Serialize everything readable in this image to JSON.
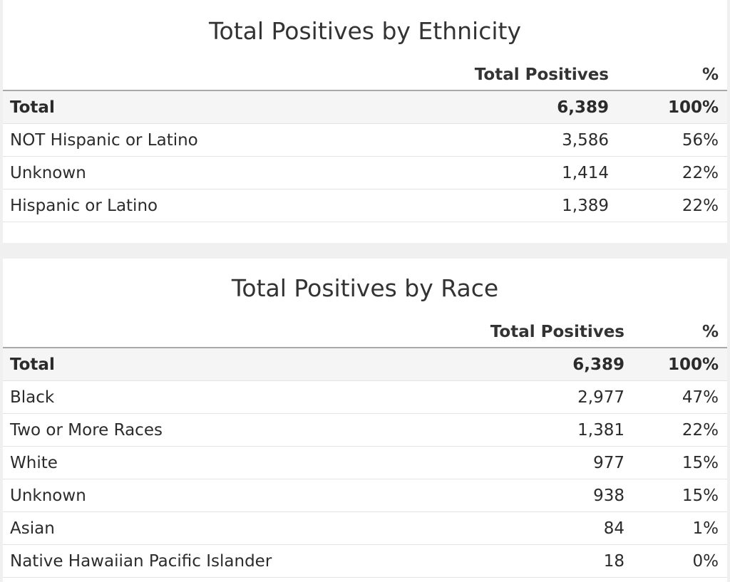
{
  "chart_data": [
    {
      "type": "table",
      "title": "Total Positives by Ethnicity",
      "columns": [
        "",
        "Total Positives",
        "%"
      ],
      "total": {
        "label": "Total",
        "value": "6,389",
        "pct": "100%"
      },
      "rows": [
        {
          "label": "NOT Hispanic or Latino",
          "value": "3,586",
          "pct": "56%"
        },
        {
          "label": "Unknown",
          "value": "1,414",
          "pct": "22%"
        },
        {
          "label": "Hispanic or Latino",
          "value": "1,389",
          "pct": "22%"
        }
      ]
    },
    {
      "type": "table",
      "title": "Total Positives by Race",
      "columns": [
        "",
        "Total Positives",
        "%"
      ],
      "total": {
        "label": "Total",
        "value": "6,389",
        "pct": "100%"
      },
      "rows": [
        {
          "label": "Black",
          "value": "2,977",
          "pct": "47%"
        },
        {
          "label": "Two or More Races",
          "value": "1,381",
          "pct": "22%"
        },
        {
          "label": "White",
          "value": "977",
          "pct": "15%"
        },
        {
          "label": "Unknown",
          "value": "938",
          "pct": "15%"
        },
        {
          "label": "Asian",
          "value": "84",
          "pct": "1%"
        },
        {
          "label": "Native Hawaiian Pacific Islander",
          "value": "18",
          "pct": "0%"
        }
      ]
    }
  ]
}
